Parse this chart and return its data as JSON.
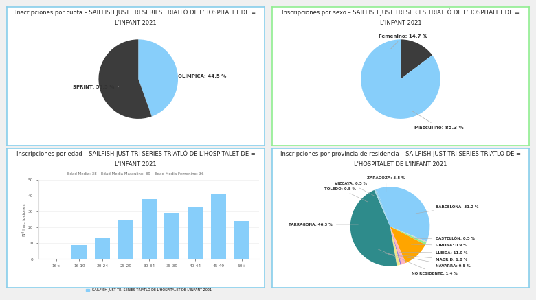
{
  "overall_bg": "#f0f0f0",
  "pie1_title_line1": "Inscripciones por cuota – SAILFISH JUST TRI SERIES TRIATLÓ DE L'HOSPITALET DE ≡",
  "pie1_title_line2": "L'INFANT 2021",
  "pie1_values": [
    44.5,
    55.5
  ],
  "pie1_labels": [
    "OLÍMPICA: 44.5 %",
    "SPRINT: 55.5 %"
  ],
  "pie1_colors": [
    "#87cefa",
    "#3c3c3c"
  ],
  "pie1_border": "#87ceeb",
  "pie2_title_line1": "Inscripciones por sexo – SAILFISH JUST TRI SERIES TRIATLÓ DE L'HOSPITALET DE ≡",
  "pie2_title_line2": "L'INFANT 2021",
  "pie2_values": [
    14.7,
    85.3
  ],
  "pie2_labels": [
    "Femenino: 14.7 %",
    "Masculino: 85.3 %"
  ],
  "pie2_colors": [
    "#3c3c3c",
    "#87cefa"
  ],
  "pie2_border": "#90ee90",
  "bar_title_line1": "Inscripciones por edad – SAILFISH JUST TRI SERIES TRIATLÓ DE L'HOSPITALET DE ≡",
  "bar_title_line2": "L'INFANT 2021",
  "bar_subtitle": "Edad Media: 38 – Edad Media Masculino: 39 – Edad Media Femenino: 36",
  "bar_categories": [
    "16<",
    "16-19",
    "20-24",
    "25-29",
    "30-34",
    "35-39",
    "40-44",
    "45-49",
    "50+"
  ],
  "bar_values": [
    0,
    9,
    13,
    25,
    38,
    29,
    33,
    41,
    24
  ],
  "bar_color": "#87cefa",
  "bar_ylabel": "Nº Inscripciones",
  "bar_legend": "SAILFISH JUST TRI SERIES TRIATLÓ DE L'HOSPITALET DE L'INFANT 2021",
  "bar_ylim": [
    0,
    50
  ],
  "bar_border": "#87ceeb",
  "pie3_title_line1": "Inscripciones por provincia de residencia – SAILFISH JUST TRI SERIES TRIATLÓ DE ≡",
  "pie3_title_line2": "L'HOSPITALET DE L'INFANT 2021",
  "pie3_values": [
    31.2,
    0.5,
    0.9,
    11.0,
    1.8,
    0.5,
    1.4,
    46.3,
    0.5,
    0.5,
    5.5
  ],
  "pie3_labels": [
    "BARCELONA: 31.2 %",
    "CASTELLÓN: 0.5 %",
    "GIRONA: 0.9 %",
    "LLEIDA: 11.0 %",
    "MADRID: 1.8 %",
    "NAVARRA: 0.5 %",
    "NO RESIDENTE: 1.4 %",
    "TARRAGONA: 46.3 %",
    "TOLEDO: 0.5 %",
    "VIZCAYA: 0.5 %",
    "ZARAGOZA: 5.5 %"
  ],
  "pie3_colors": [
    "#87cefa",
    "#d3d3d3",
    "#90ee90",
    "#ffa500",
    "#ffb6c1",
    "#9370db",
    "#f0e68c",
    "#2e8b8b",
    "#add8e6",
    "#87ceeb",
    "#87cefa"
  ],
  "pie3_border": "#87ceeb",
  "title_fontsize": 6.0,
  "subtitle_fontsize": 4.5,
  "label_fontsize": 5.0
}
